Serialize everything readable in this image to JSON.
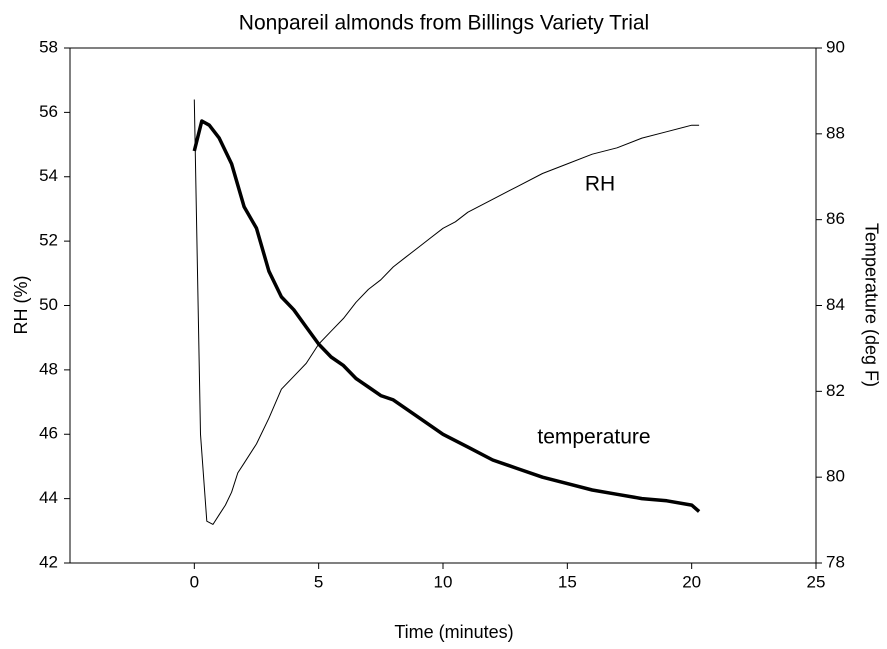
{
  "chart_data": {
    "type": "line",
    "title": "Nonpareil almonds from Billings Variety Trial",
    "x_label": "Time (minutes)",
    "y_label": "RH (%)",
    "y2_label": "Temperature (deg F)",
    "xlim": [
      -5,
      25
    ],
    "xticks": [
      0,
      5,
      10,
      15,
      20,
      25
    ],
    "ylim": [
      42,
      58
    ],
    "yticks": [
      42,
      44,
      46,
      48,
      50,
      52,
      54,
      56,
      58
    ],
    "y2lim": [
      78,
      90
    ],
    "y2ticks": [
      78,
      80,
      82,
      84,
      86,
      88,
      90
    ],
    "annotations": [
      "RH",
      "temperature"
    ],
    "series": [
      {
        "name": "RH",
        "color": "#000000",
        "width": 1,
        "x": [
          0,
          0.25,
          0.5,
          0.75,
          1,
          1.25,
          1.5,
          1.75,
          2,
          2.5,
          3,
          3.5,
          4,
          4.5,
          5,
          5.5,
          6,
          6.5,
          7,
          7.5,
          8,
          8.5,
          9,
          9.5,
          10,
          10.5,
          11,
          12,
          13,
          14,
          15,
          16,
          17,
          18,
          19,
          20,
          20.3
        ],
        "values": [
          56.4,
          46.0,
          43.3,
          43.2,
          43.5,
          43.8,
          44.2,
          44.8,
          45.1,
          45.7,
          46.5,
          47.4,
          47.8,
          48.2,
          48.8,
          49.2,
          49.6,
          50.1,
          50.5,
          50.8,
          51.2,
          51.5,
          51.8,
          52.1,
          52.4,
          52.6,
          52.9,
          53.3,
          53.7,
          54.1,
          54.4,
          54.7,
          54.9,
          55.2,
          55.4,
          55.6,
          55.6
        ]
      },
      {
        "name": "temperature",
        "color": "#000000",
        "width": 3.5,
        "axis": "y2",
        "x": [
          0,
          0.3,
          0.6,
          1,
          1.5,
          2,
          2.5,
          3,
          3.5,
          4,
          4.5,
          5,
          5.5,
          6,
          6.5,
          7,
          7.5,
          8,
          9,
          10,
          11,
          12,
          13,
          14,
          15,
          16,
          17,
          18,
          19,
          20,
          20.3
        ],
        "values": [
          87.6,
          88.3,
          88.2,
          87.9,
          87.3,
          86.3,
          85.8,
          84.8,
          84.2,
          83.9,
          83.5,
          83.1,
          82.8,
          82.6,
          82.3,
          82.1,
          81.9,
          81.8,
          81.4,
          81.0,
          80.7,
          80.4,
          80.2,
          80.0,
          79.85,
          79.7,
          79.6,
          79.5,
          79.45,
          79.35,
          79.2
        ]
      }
    ]
  }
}
